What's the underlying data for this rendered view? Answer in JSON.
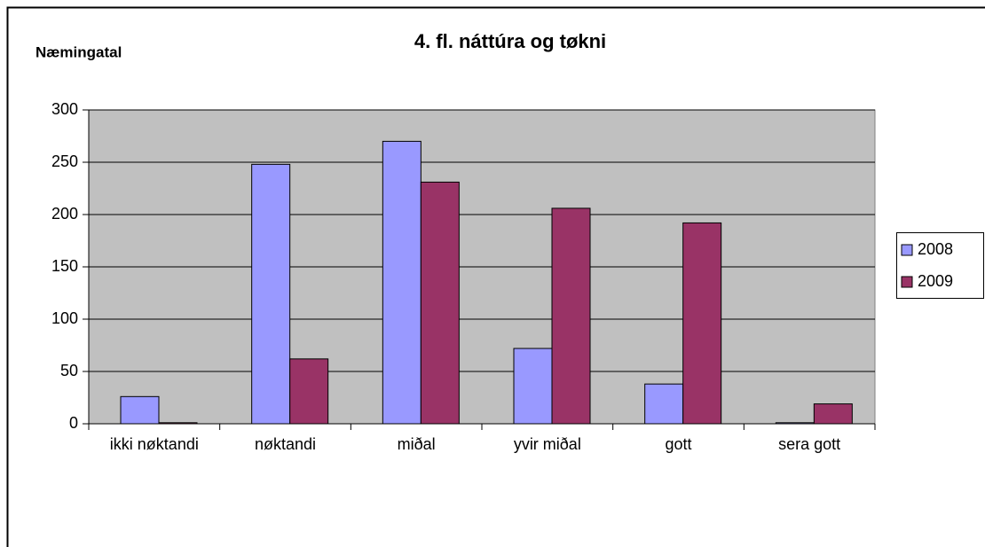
{
  "chart_data": {
    "type": "bar",
    "title": "4. fl. náttúra og tøkni",
    "y_label": "Næmingatal",
    "categories": [
      "ikki nøktandi",
      "nøktandi",
      "miðal",
      "yvir miðal",
      "gott",
      "sera gott"
    ],
    "series": [
      {
        "name": "2008",
        "color": "#9999ff",
        "values": [
          26,
          248,
          270,
          72,
          38,
          1
        ]
      },
      {
        "name": "2009",
        "color": "#993366",
        "values": [
          1,
          62,
          231,
          206,
          192,
          19
        ]
      }
    ],
    "ylim": [
      0,
      300
    ],
    "yticks": [
      0,
      50,
      100,
      150,
      200,
      250,
      300
    ],
    "grid": true,
    "legend": "right"
  }
}
